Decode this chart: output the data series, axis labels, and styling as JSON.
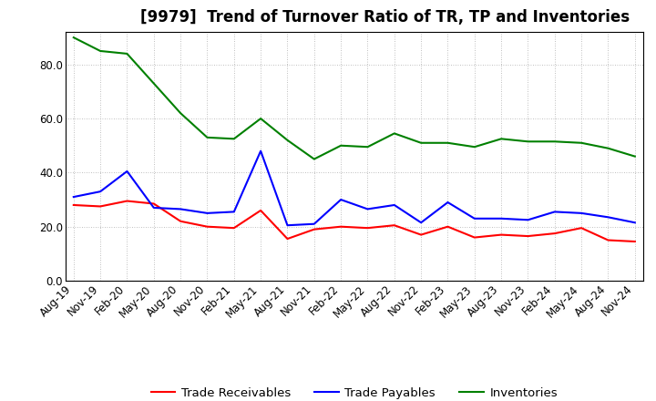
{
  "title": "[9979]  Trend of Turnover Ratio of TR, TP and Inventories",
  "x_labels": [
    "Aug-19",
    "Nov-19",
    "Feb-20",
    "May-20",
    "Aug-20",
    "Nov-20",
    "Feb-21",
    "May-21",
    "Aug-21",
    "Nov-21",
    "Feb-22",
    "May-22",
    "Aug-22",
    "Nov-22",
    "Feb-23",
    "May-23",
    "Aug-23",
    "Nov-23",
    "Feb-24",
    "May-24",
    "Aug-24",
    "Nov-24"
  ],
  "trade_receivables": [
    28.0,
    27.5,
    29.5,
    28.5,
    22.0,
    20.0,
    19.5,
    26.0,
    15.5,
    19.0,
    20.0,
    19.5,
    20.5,
    17.0,
    20.0,
    16.0,
    17.0,
    16.5,
    17.5,
    19.5,
    15.0,
    14.5
  ],
  "trade_payables": [
    31.0,
    33.0,
    40.5,
    27.0,
    26.5,
    25.0,
    25.5,
    48.0,
    20.5,
    21.0,
    30.0,
    26.5,
    28.0,
    21.5,
    29.0,
    23.0,
    23.0,
    22.5,
    25.5,
    25.0,
    23.5,
    21.5
  ],
  "inventories": [
    90.0,
    85.0,
    84.0,
    73.0,
    62.0,
    53.0,
    52.5,
    60.0,
    52.0,
    45.0,
    50.0,
    49.5,
    54.5,
    51.0,
    51.0,
    49.5,
    52.5,
    51.5,
    51.5,
    51.0,
    49.0,
    46.0
  ],
  "ylim": [
    0.0,
    92.0
  ],
  "yticks": [
    0.0,
    20.0,
    40.0,
    60.0,
    80.0
  ],
  "line_colors": {
    "trade_receivables": "#ff0000",
    "trade_payables": "#0000ff",
    "inventories": "#008000"
  },
  "legend_labels": [
    "Trade Receivables",
    "Trade Payables",
    "Inventories"
  ],
  "background_color": "#ffffff",
  "grid_color": "#aaaaaa",
  "title_fontsize": 12,
  "axis_fontsize": 8.5,
  "legend_fontsize": 9.5
}
